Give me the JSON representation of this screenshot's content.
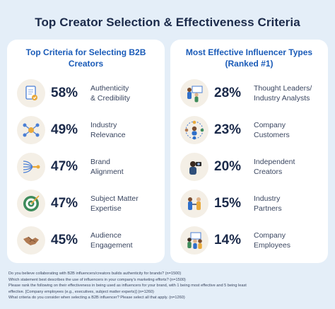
{
  "title": "Top Creator Selection & Effectiveness Criteria",
  "left_panel": {
    "heading_line1": "Top Criteria for Selecting B2B",
    "heading_line2": "Creators",
    "items": [
      {
        "percent": "58%",
        "line1": "Authenticity",
        "line2": "& Credibility",
        "icon": "document-check-icon"
      },
      {
        "percent": "49%",
        "line1": "Industry",
        "line2": "Relevance",
        "icon": "network-nodes-icon"
      },
      {
        "percent": "47%",
        "line1": "Brand",
        "line2": "Alignment",
        "icon": "converging-lines-icon"
      },
      {
        "percent": "47%",
        "line1": "Subject Matter",
        "line2": "Expertise",
        "icon": "target-icon"
      },
      {
        "percent": "45%",
        "line1": "Audience",
        "line2": "Engagement",
        "icon": "handshake-icon"
      }
    ]
  },
  "right_panel": {
    "heading_line1": "Most Effective Influencer Types",
    "heading_line2": "(Ranked #1)",
    "items": [
      {
        "percent": "28%",
        "line1": "Thought Leaders/",
        "line2": "Industry Analysts",
        "icon": "presenters-icon"
      },
      {
        "percent": "23%",
        "line1": "Company",
        "line2": "Customers",
        "icon": "customers-circle-icon"
      },
      {
        "percent": "20%",
        "line1": "Independent",
        "line2": "Creators",
        "icon": "camera-creator-icon"
      },
      {
        "percent": "15%",
        "line1": "Industry",
        "line2": "Partners",
        "icon": "partners-icon"
      },
      {
        "percent": "14%",
        "line1": "Company",
        "line2": "Employees",
        "icon": "employees-icon"
      }
    ]
  },
  "footnotes": [
    "Do you believe collaborating with B2B influencers/creators builds authenticity for brands? (n=1500)",
    "Which statement best describes the use of influencers in your company's marketing efforts? (n=1500)",
    "Please rank the following on their effectiveness in being used as influencers for your brand, with 1 being most effective and 5 being least",
    "effective. [Company employees (e.g., executives, subject matter experts)] (n=1260)",
    "What criteria do you consider when selecting a B2B influencer? Please select all that apply. (n=1260)"
  ]
}
